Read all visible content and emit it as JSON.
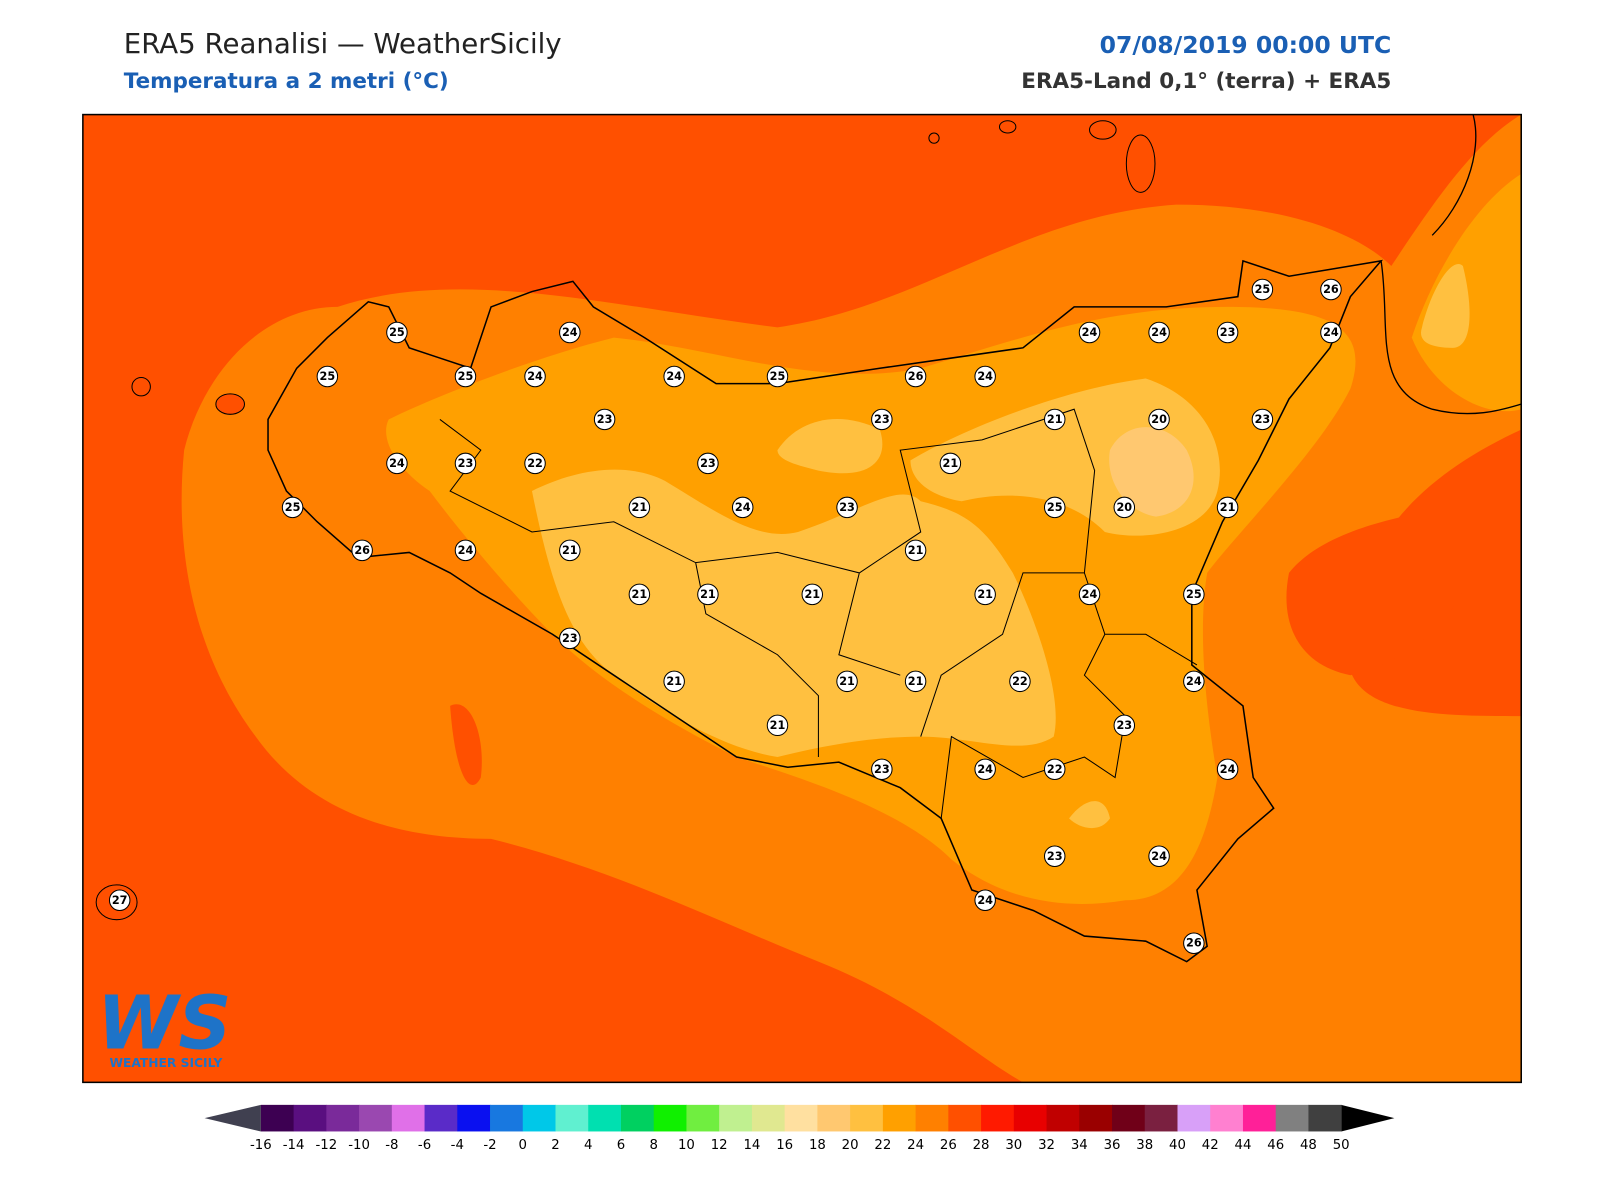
{
  "header": {
    "title": "ERA5 Reanalisi — WeatherSicily",
    "subtitle": "Temperatura a 2 metri (°C)",
    "date": "07/08/2019 00:00 UTC",
    "source": "ERA5-Land 0,1° (terra) + ERA5"
  },
  "logo": {
    "mark": "WS",
    "text": "WEATHER SICILY"
  },
  "stations": [
    25,
    25,
    25,
    24,
    24,
    24,
    25,
    26,
    24,
    24,
    24,
    23,
    24,
    25,
    26,
    23,
    23,
    21,
    20,
    23,
    24,
    23,
    22,
    23,
    21,
    25,
    21,
    24,
    23,
    25,
    20,
    21,
    26,
    24,
    21,
    21,
    21,
    21,
    21,
    21,
    24,
    25,
    23,
    21,
    21,
    21,
    22,
    24,
    23,
    21,
    23,
    24,
    22,
    24,
    23,
    24,
    27,
    24,
    26
  ],
  "colorbar": {
    "ticks": [
      -16,
      -14,
      -12,
      -10,
      -8,
      -6,
      -4,
      -2,
      0,
      2,
      4,
      6,
      8,
      10,
      12,
      14,
      16,
      18,
      20,
      22,
      24,
      26,
      28,
      30,
      32,
      34,
      36,
      38,
      40,
      42,
      44,
      46,
      48,
      50
    ],
    "colors": [
      "#3d0052",
      "#5a0f80",
      "#7a2a9a",
      "#9a48b0",
      "#e070e8",
      "#5a2bc8",
      "#0a10f0",
      "#1878e0",
      "#00c8e8",
      "#60f0d0",
      "#00e0b0",
      "#00d060",
      "#10f000",
      "#70ee40",
      "#c0f090",
      "#e0e890",
      "#ffe0a0",
      "#ffc870",
      "#ffc040",
      "#ffa000",
      "#ff8000",
      "#ff5000",
      "#ff1a00",
      "#e80000",
      "#c00000",
      "#9a0000",
      "#700018",
      "#7a2040",
      "#d8a0f8",
      "#ff80d0",
      "#ff2098",
      "#808080",
      "#404040"
    ],
    "under": "#404050",
    "over": "#000000"
  }
}
